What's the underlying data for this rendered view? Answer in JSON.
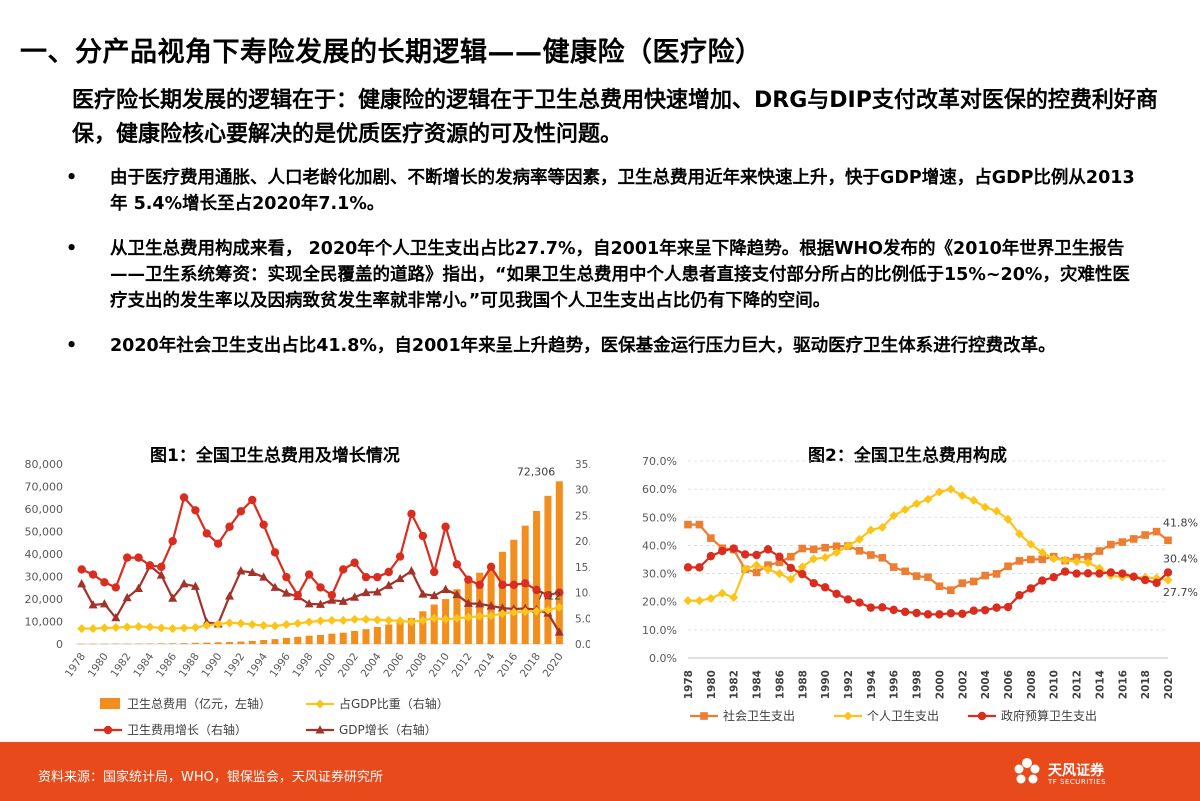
{
  "page": {
    "title": "一、分产品视角下寿险发展的长期逻辑——健康险（医疗险）",
    "lead": "医疗险长期发展的逻辑在于：健康险的逻辑在于卫生总费用快速增加、DRG与DIP支付改革对医保的控费利好商保，健康险核心要解决的是优质医疗资源的可及性问题。",
    "bullet_mark": "•",
    "bullets": [
      "由于医疗费用通胀、人口老龄化加剧、不断增长的发病率等因素，卫生总费用近年来快速上升，快于GDP增速，占GDP比例从2013年 5.4%增长至占2020年7.1%。",
      "从卫生总费用构成来看， 2020年个人卫生支出占比27.7%，自2001年来呈下降趋势。根据WHO发布的《2010年世界卫生报告——卫生系统筹资：实现全民覆盖的道路》指出，“如果卫生总费用中个人患者直接支付部分所占的比例低于15%~20%，灾难性医疗支出的发生率以及因病致贫发生率就非常小。”可见我国个人卫生支出占比仍有下降的空间。",
      "2020年社会卫生支出占比41.8%，自2001年来呈上升趋势，医保基金运行压力巨大，驱动医疗卫生体系进行控费改革。"
    ],
    "footer": "资料来源：国家统计局，WHO，银保监会，天风证券研究所",
    "logo": "天风证券",
    "logo_sub": "TF SECURITIES",
    "colors": {
      "accent": "#e84a1b",
      "bar": "#f28e1e",
      "line_red": "#d92d20",
      "line_yellow": "#fcc419",
      "line_brown": "#a3332a",
      "line_orange": "#ed7d31"
    }
  },
  "chart_data": [
    {
      "type": "bar",
      "title": "图1：全国卫生总费用及增长情况",
      "x": [
        1978,
        1979,
        1980,
        1981,
        1982,
        1983,
        1984,
        1985,
        1986,
        1987,
        1988,
        1989,
        1990,
        1991,
        1992,
        1993,
        1994,
        1995,
        1996,
        1997,
        1998,
        1999,
        2000,
        2001,
        2002,
        2003,
        2004,
        2005,
        2006,
        2007,
        2008,
        2009,
        2010,
        2011,
        2012,
        2013,
        2014,
        2015,
        2016,
        2017,
        2018,
        2019,
        2020
      ],
      "x_tick_labels": [
        "1978",
        "1980",
        "1982",
        "1984",
        "1986",
        "1988",
        "1990",
        "1992",
        "1994",
        "1996",
        "1998",
        "2000",
        "2002",
        "2004",
        "2006",
        "2008",
        "2010",
        "2012",
        "2014",
        "2016",
        "2018",
        "2020"
      ],
      "ylim_left": [
        0,
        80000
      ],
      "left_ticks": [
        "80,000",
        "70,000",
        "60,000",
        "50,000",
        "40,000",
        "30,000",
        "20,000",
        "10,000",
        "0"
      ],
      "ylim_right": [
        0,
        35
      ],
      "right_ticks": [
        "35.00",
        "30.00",
        "25.00",
        "20.00",
        "15.00",
        "10.00",
        "5.00",
        "0.00"
      ],
      "series": [
        {
          "name": "卫生总费用（亿元，左轴）",
          "axis": "left",
          "kind": "bar",
          "values": [
            110,
            122,
            143,
            160,
            177,
            207,
            242,
            279,
            315,
            379,
            488,
            615,
            747,
            893,
            1097,
            1378,
            1761,
            2155,
            2709,
            3197,
            3679,
            4048,
            4587,
            5026,
            5790,
            6584,
            7590,
            8660,
            9843,
            11574,
            14535,
            17542,
            19980,
            24346,
            28119,
            31669,
            35312,
            40975,
            46345,
            52598,
            59122,
            65841,
            72306
          ],
          "label_last": "72,306"
        },
        {
          "name": "占GDP比重（右轴）",
          "axis": "right",
          "kind": "line-diamond",
          "values": [
            3.0,
            3.0,
            3.1,
            3.2,
            3.3,
            3.4,
            3.3,
            3.1,
            3.0,
            3.1,
            3.2,
            3.6,
            3.9,
            4.1,
            4.0,
            3.8,
            3.6,
            3.5,
            3.8,
            4.0,
            4.3,
            4.5,
            4.6,
            4.6,
            4.8,
            4.8,
            4.7,
            4.6,
            4.5,
            4.3,
            4.6,
            5.0,
            4.8,
            5.0,
            5.2,
            5.4,
            5.5,
            5.9,
            6.2,
            6.3,
            6.4,
            6.6,
            7.12
          ],
          "label_last": "7.12"
        },
        {
          "name": "卫生费用增长（右轴）",
          "axis": "right",
          "kind": "line-circle",
          "values": [
            14.5,
            13.5,
            12.0,
            11.0,
            16.8,
            16.8,
            15.3,
            15.0,
            20.0,
            28.5,
            26.0,
            21.5,
            19.5,
            22.8,
            25.8,
            28.0,
            23.2,
            17.8,
            13.0,
            9.5,
            13.5,
            11.0,
            9.5,
            14.5,
            15.8,
            13.0,
            13.0,
            14.0,
            17.0,
            25.3,
            21.0,
            14.0,
            22.8,
            15.5,
            12.5,
            11.5,
            15.0,
            11.5,
            11.5,
            11.8,
            10.5,
            9.5,
            10.0
          ]
        },
        {
          "name": "GDP增长（右轴）",
          "axis": "right",
          "kind": "line-triangle",
          "values": [
            11.7,
            7.6,
            7.8,
            5.1,
            9.0,
            10.8,
            15.2,
            13.4,
            8.9,
            11.7,
            11.2,
            4.2,
            3.9,
            9.3,
            14.2,
            13.9,
            13.0,
            11.0,
            9.9,
            9.2,
            7.8,
            7.7,
            8.5,
            8.3,
            9.1,
            10.0,
            10.1,
            11.4,
            12.7,
            14.2,
            9.7,
            9.4,
            10.6,
            9.6,
            7.9,
            7.8,
            7.4,
            7.0,
            6.8,
            6.9,
            6.7,
            6.0,
            2.3
          ]
        }
      ]
    },
    {
      "type": "line",
      "title": "图2：全国卫生总费用构成",
      "x": [
        1978,
        1979,
        1980,
        1981,
        1982,
        1983,
        1984,
        1985,
        1986,
        1987,
        1988,
        1989,
        1990,
        1991,
        1992,
        1993,
        1994,
        1995,
        1996,
        1997,
        1998,
        1999,
        2000,
        2001,
        2002,
        2003,
        2004,
        2005,
        2006,
        2007,
        2008,
        2009,
        2010,
        2011,
        2012,
        2013,
        2014,
        2015,
        2016,
        2017,
        2018,
        2019,
        2020
      ],
      "x_tick_labels": [
        "1978",
        "1980",
        "1982",
        "1984",
        "1986",
        "1988",
        "1990",
        "1992",
        "1994",
        "1996",
        "1998",
        "2000",
        "2002",
        "2004",
        "2006",
        "2008",
        "2010",
        "2012",
        "2014",
        "2016",
        "2018",
        "2020"
      ],
      "ylim": [
        0,
        70
      ],
      "y_ticks": [
        "70.0%",
        "60.0%",
        "50.0%",
        "40.0%",
        "30.0%",
        "20.0%",
        "10.0%",
        "0.0%"
      ],
      "series": [
        {
          "name": "社会卫生支出",
          "kind": "line-square",
          "values": [
            47.4,
            47.4,
            42.6,
            39.0,
            38.5,
            31.5,
            30.4,
            33.0,
            34.0,
            36.0,
            38.9,
            38.6,
            39.2,
            39.7,
            39.8,
            38.1,
            36.6,
            35.6,
            32.3,
            30.8,
            29.1,
            28.7,
            25.5,
            24.1,
            26.6,
            27.2,
            29.3,
            29.9,
            32.6,
            34.5,
            35.0,
            35.1,
            36.0,
            34.6,
            35.7,
            36.0,
            38.0,
            40.3,
            41.2,
            42.3,
            43.7,
            44.9,
            41.8
          ],
          "label_last": "41.8%"
        },
        {
          "name": "个人卫生支出",
          "kind": "line-diamond",
          "values": [
            20.4,
            20.4,
            21.2,
            23.0,
            21.5,
            31.7,
            33.0,
            31.5,
            30.0,
            28.0,
            32.4,
            35.2,
            35.7,
            37.5,
            39.8,
            42.2,
            45.5,
            46.4,
            50.6,
            52.7,
            54.8,
            56.4,
            59.0,
            60.0,
            57.7,
            56.0,
            53.6,
            52.2,
            49.3,
            44.1,
            40.4,
            37.5,
            35.3,
            34.8,
            34.3,
            33.9,
            31.9,
            29.3,
            28.8,
            28.8,
            28.6,
            28.4,
            27.7
          ],
          "label_last": "27.7%"
        },
        {
          "name": "政府预算卫生支出",
          "kind": "line-circle",
          "values": [
            32.2,
            32.2,
            36.2,
            38.0,
            38.9,
            36.8,
            36.6,
            38.6,
            36.0,
            32.0,
            29.8,
            26.6,
            25.1,
            22.8,
            20.8,
            19.7,
            17.9,
            18.0,
            17.1,
            16.4,
            16.0,
            15.5,
            15.5,
            15.9,
            15.7,
            16.8,
            17.0,
            17.9,
            18.1,
            22.3,
            24.7,
            27.5,
            28.7,
            30.7,
            30.0,
            30.1,
            30.0,
            30.4,
            30.0,
            28.9,
            27.7,
            26.7,
            30.4
          ],
          "label_last": "30.4%"
        }
      ]
    }
  ]
}
